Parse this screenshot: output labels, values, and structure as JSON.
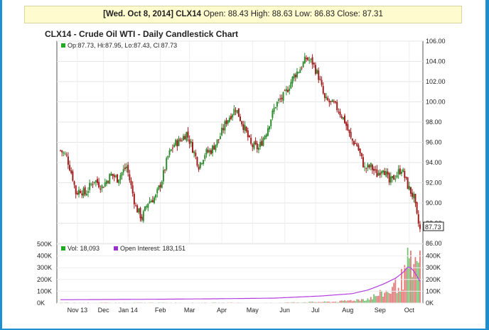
{
  "quote": {
    "date": "[Wed. Oct 8, 2014]",
    "symbol": "CLX14",
    "open_label": "Open:",
    "open": "88.43",
    "high_label": "High:",
    "high": "88.63",
    "low_label": "Low:",
    "low": "86.83",
    "close_label": "Close:",
    "close": "87.31"
  },
  "chart_title": "CLX14 - Crude Oil WTI - Daily Candlestick Chart",
  "ohlc_legend": "Op:87.73, Hi:87.95, Lo:87.43, Cl:87.73",
  "price_marker": "87.73",
  "volume_legend": {
    "vol": "Vol: 18,093",
    "oi": "Open Interest: 183,151"
  },
  "colors": {
    "up": "#2e8b2e",
    "down": "#a01d1d",
    "oi": "#b43cdf",
    "vol_up": "#74c474",
    "vol_down": "#e57a7a",
    "legend_green": "#22aa22",
    "legend_purple": "#9933cc"
  },
  "chart_data": {
    "type": "candlestick",
    "title": "CLX14 - Crude Oil WTI - Daily Candlestick Chart",
    "price_axis": {
      "min": 86.0,
      "max": 106.0,
      "ticks": [
        "106.00",
        "104.00",
        "102.00",
        "100.00",
        "98.00",
        "96.00",
        "94.00",
        "92.00",
        "90.00",
        "88.00",
        "86.00"
      ]
    },
    "volume_axis": {
      "max": 500000,
      "left_ticks": [
        "500K",
        "400K",
        "300K",
        "200K",
        "100K",
        "0K"
      ],
      "right_ticks": [
        "400K",
        "300K",
        "200K",
        "100K",
        "0K"
      ]
    },
    "months": [
      "Nov 13",
      "Dec",
      "Jan 14",
      "Feb",
      "Mar",
      "Apr",
      "May",
      "Jun",
      "Jul",
      "Aug",
      "Sep",
      "Oct"
    ],
    "month_start_index": [
      11,
      28,
      44,
      65,
      84,
      105,
      125,
      146,
      166,
      187,
      208,
      227
    ],
    "price_path": [
      [
        0,
        95.2
      ],
      [
        4,
        94.6
      ],
      [
        8,
        92.5
      ],
      [
        10,
        91.0
      ],
      [
        13,
        91.3
      ],
      [
        16,
        90.9
      ],
      [
        22,
        92.3
      ],
      [
        27,
        91.6
      ],
      [
        33,
        92.8
      ],
      [
        37,
        92.4
      ],
      [
        43,
        93.6
      ],
      [
        45,
        92.3
      ],
      [
        49,
        89.6
      ],
      [
        53,
        88.5
      ],
      [
        57,
        90.1
      ],
      [
        62,
        90.6
      ],
      [
        66,
        92.3
      ],
      [
        70,
        94.6
      ],
      [
        74,
        95.8
      ],
      [
        78,
        96.2
      ],
      [
        82,
        96.9
      ],
      [
        86,
        95.4
      ],
      [
        90,
        93.7
      ],
      [
        94,
        94.9
      ],
      [
        98,
        95.2
      ],
      [
        103,
        96.3
      ],
      [
        108,
        98.1
      ],
      [
        114,
        99.4
      ],
      [
        120,
        97.3
      ],
      [
        124,
        95.7
      ],
      [
        129,
        95.4
      ],
      [
        134,
        97.1
      ],
      [
        140,
        99.7
      ],
      [
        146,
        100.7
      ],
      [
        152,
        102.6
      ],
      [
        156,
        103.3
      ],
      [
        160,
        104.3
      ],
      [
        164,
        103.9
      ],
      [
        168,
        102.5
      ],
      [
        172,
        100.2
      ],
      [
        178,
        99.7
      ],
      [
        181,
        99.2
      ],
      [
        185,
        98.1
      ],
      [
        189,
        96.3
      ],
      [
        193,
        95.7
      ],
      [
        198,
        93.4
      ],
      [
        202,
        93.6
      ],
      [
        206,
        92.8
      ],
      [
        210,
        93.6
      ],
      [
        214,
        92.0
      ],
      [
        218,
        92.7
      ],
      [
        222,
        93.4
      ],
      [
        226,
        91.7
      ],
      [
        228,
        91.1
      ],
      [
        230,
        90.5
      ],
      [
        232,
        88.6
      ],
      [
        234,
        87.31
      ]
    ],
    "volume_envelope": [
      [
        120,
        0
      ],
      [
        180,
        12000
      ],
      [
        200,
        40000
      ],
      [
        215,
        120000
      ],
      [
        225,
        260000
      ],
      [
        230,
        300000
      ],
      [
        234,
        360000
      ]
    ],
    "open_interest": [
      [
        0,
        28000
      ],
      [
        30,
        30000
      ],
      [
        60,
        32000
      ],
      [
        100,
        36000
      ],
      [
        140,
        42000
      ],
      [
        170,
        60000
      ],
      [
        190,
        80000
      ],
      [
        200,
        110000
      ],
      [
        210,
        160000
      ],
      [
        218,
        210000
      ],
      [
        223,
        260000
      ],
      [
        226,
        305000
      ],
      [
        228,
        300000
      ],
      [
        230,
        270000
      ],
      [
        232,
        230000
      ],
      [
        234,
        183151
      ]
    ]
  }
}
